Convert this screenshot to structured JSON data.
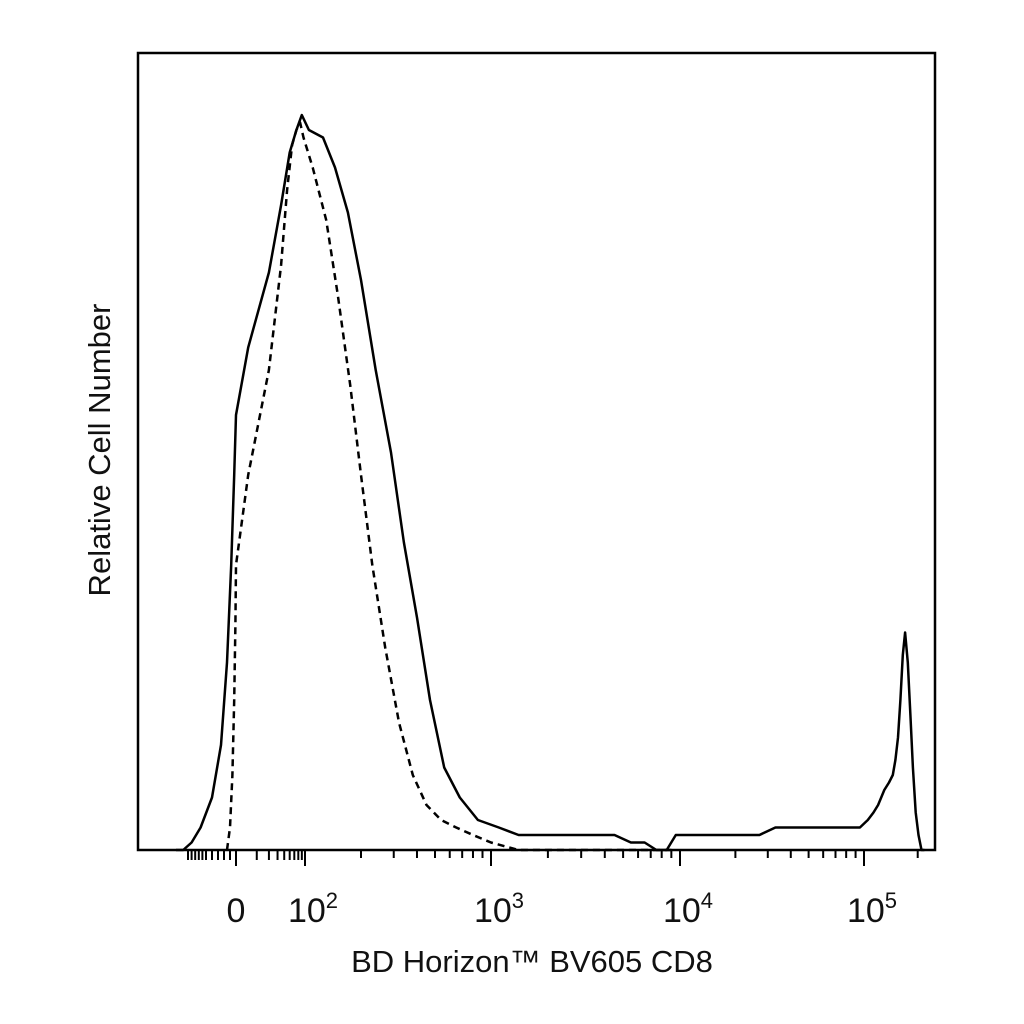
{
  "chart_data": {
    "type": "line",
    "title": "",
    "xlabel": "BD Horizon™ BV605 CD8",
    "ylabel": "Relative Cell Number",
    "xscale": "biexponential (linear near 0, log above 10^2)",
    "xlim": [
      -1500,
      250000
    ],
    "ylim": [
      0,
      100
    ],
    "grid": false,
    "legend": "none",
    "x_tick_labels": [
      {
        "x": 0,
        "base": "0",
        "exp": ""
      },
      {
        "x": 100,
        "base": "10",
        "exp": "2"
      },
      {
        "x": 1000,
        "base": "10",
        "exp": "3"
      },
      {
        "x": 10000,
        "base": "10",
        "exp": "4"
      },
      {
        "x": 100000,
        "base": "10",
        "exp": "5"
      }
    ],
    "series": [
      {
        "style": "solid",
        "color": "#000000",
        "points": [
          [
            -1500,
            0
          ],
          [
            -1200,
            0
          ],
          [
            -900,
            1
          ],
          [
            -650,
            3
          ],
          [
            -400,
            7
          ],
          [
            -250,
            14
          ],
          [
            -150,
            25
          ],
          [
            -80,
            38
          ],
          [
            -30,
            50
          ],
          [
            0,
            58
          ],
          [
            15,
            67
          ],
          [
            30,
            77
          ],
          [
            45,
            86
          ],
          [
            60,
            93
          ],
          [
            75,
            96
          ],
          [
            90,
            98
          ],
          [
            105,
            96
          ],
          [
            125,
            95
          ],
          [
            145,
            91
          ],
          [
            170,
            85
          ],
          [
            200,
            76
          ],
          [
            240,
            64
          ],
          [
            290,
            53
          ],
          [
            340,
            41
          ],
          [
            400,
            31
          ],
          [
            470,
            20
          ],
          [
            560,
            11
          ],
          [
            680,
            7
          ],
          [
            850,
            4
          ],
          [
            1100,
            3
          ],
          [
            1400,
            2
          ],
          [
            1800,
            2
          ],
          [
            2300,
            2
          ],
          [
            2900,
            2
          ],
          [
            3700,
            2
          ],
          [
            4500,
            2
          ],
          [
            5500,
            1
          ],
          [
            6500,
            1
          ],
          [
            7500,
            0
          ],
          [
            8500,
            0
          ],
          [
            9500,
            2
          ],
          [
            11000,
            2
          ],
          [
            14000,
            2
          ],
          [
            18000,
            2
          ],
          [
            22000,
            2
          ],
          [
            27000,
            2
          ],
          [
            33000,
            3
          ],
          [
            40000,
            3
          ],
          [
            50000,
            3
          ],
          [
            60000,
            3
          ],
          [
            68000,
            3
          ],
          [
            75000,
            3
          ],
          [
            85000,
            3
          ],
          [
            95000,
            3
          ],
          [
            105000,
            4
          ],
          [
            113000,
            5
          ],
          [
            120000,
            6
          ],
          [
            130000,
            8
          ],
          [
            138000,
            9
          ],
          [
            145000,
            10
          ],
          [
            150000,
            12
          ],
          [
            155000,
            15
          ],
          [
            160000,
            20
          ],
          [
            165000,
            26
          ],
          [
            170000,
            29
          ],
          [
            176000,
            25
          ],
          [
            182000,
            18
          ],
          [
            188000,
            11
          ],
          [
            195000,
            5
          ],
          [
            202000,
            2
          ],
          [
            210000,
            0
          ],
          [
            218000,
            0
          ]
        ]
      },
      {
        "style": "dashed",
        "color": "#000000",
        "points": [
          [
            -150,
            0
          ],
          [
            -100,
            3
          ],
          [
            -60,
            10
          ],
          [
            -30,
            20
          ],
          [
            -10,
            30
          ],
          [
            0,
            38
          ],
          [
            15,
            50
          ],
          [
            30,
            64
          ],
          [
            45,
            78
          ],
          [
            55,
            88
          ],
          [
            65,
            94
          ],
          [
            75,
            96
          ],
          [
            85,
            97
          ],
          [
            95,
            95
          ],
          [
            110,
            91
          ],
          [
            130,
            84
          ],
          [
            150,
            74
          ],
          [
            175,
            62
          ],
          [
            200,
            50
          ],
          [
            230,
            38
          ],
          [
            270,
            27
          ],
          [
            320,
            17
          ],
          [
            380,
            10
          ],
          [
            450,
            6
          ],
          [
            540,
            4
          ],
          [
            650,
            3
          ],
          [
            800,
            2
          ],
          [
            1000,
            1
          ],
          [
            1400,
            0
          ],
          [
            2000,
            0
          ],
          [
            2800,
            0
          ],
          [
            3600,
            0
          ],
          [
            4400,
            0
          ],
          [
            5500,
            0
          ],
          [
            7000,
            0
          ],
          [
            9000,
            0
          ]
        ]
      }
    ]
  }
}
